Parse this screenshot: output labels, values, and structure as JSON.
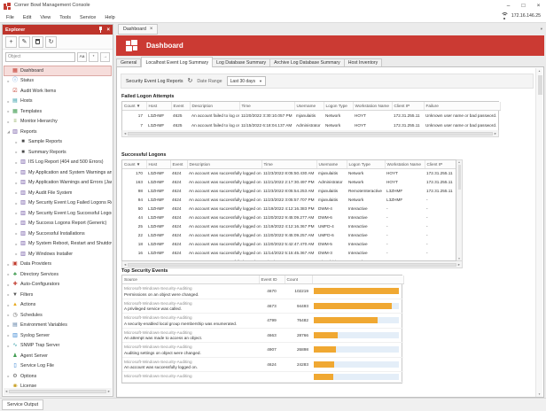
{
  "window": {
    "title": "Corner Bowl Management Console",
    "menus": [
      "File",
      "Edit",
      "View",
      "Tools",
      "Service",
      "Help"
    ],
    "network_ip": "172.16.146.25",
    "controls": {
      "minimize": "–",
      "maximize": "□",
      "close": "×"
    }
  },
  "explorer": {
    "title": "Explorer",
    "search_placeholder": "Object",
    "toolbar_icons": [
      {
        "name": "add-icon",
        "glyph": "+"
      },
      {
        "name": "edit-icon",
        "glyph": "✎"
      },
      {
        "name": "delete-icon",
        "glyph": ""
      },
      {
        "name": "refresh-icon",
        "glyph": "↻"
      }
    ],
    "search_buttons": [
      {
        "name": "match-case-button",
        "label": "Aa"
      },
      {
        "name": "wildcard-button",
        "label": "*"
      },
      {
        "name": "find-button",
        "label": "→"
      }
    ],
    "tree": [
      {
        "label": "Dashboard",
        "icon": "dashboard-icon",
        "glyph": "▦",
        "color": "#C43B30",
        "level": 0,
        "arrow": "",
        "selected": true
      },
      {
        "label": "Status",
        "icon": "status-icon",
        "glyph": "ⓘ",
        "color": "#2F7FD0",
        "level": 0,
        "arrow": "c"
      },
      {
        "label": "Audit Work Items",
        "icon": "audit-work-items-icon",
        "glyph": "☑",
        "color": "#C0392B",
        "level": 0,
        "arrow": ""
      },
      {
        "label": "Hosts",
        "icon": "hosts-icon",
        "glyph": "▤",
        "color": "#2E9BA6",
        "level": 0,
        "arrow": "c"
      },
      {
        "label": "Templates",
        "icon": "templates-icon",
        "glyph": "▦",
        "color": "#3E9B4F",
        "level": 0,
        "arrow": "c"
      },
      {
        "label": "Monitor Hierarchy",
        "icon": "monitor-hierarchy-icon",
        "glyph": "≡",
        "color": "#7FA24A",
        "level": 0,
        "arrow": "c"
      },
      {
        "label": "Reports",
        "icon": "reports-icon",
        "glyph": "▥",
        "color": "#6B4FA0",
        "level": 0,
        "arrow": "e"
      },
      {
        "label": "Sample Reports",
        "icon": "folder-icon",
        "glyph": "■",
        "color": "#4A4A4A",
        "level": 1,
        "arrow": "c"
      },
      {
        "label": "Summary Reports",
        "icon": "folder-icon",
        "glyph": "■",
        "color": "#4A4A4A",
        "level": 1,
        "arrow": "c"
      },
      {
        "label": "IIS Log Report (404 and 500 Errors)",
        "icon": "report-icon",
        "glyph": "▥",
        "color": "#6B4FA0",
        "level": 1,
        "arrow": "c"
      },
      {
        "label": "My Application and System Warnings and Errors",
        "icon": "report-icon",
        "glyph": "▥",
        "color": "#6B4FA0",
        "level": 1,
        "arrow": "c"
      },
      {
        "label": "My Application Warnings and Errors (Janco)",
        "icon": "report-icon",
        "glyph": "▥",
        "color": "#6B4FA0",
        "level": 1,
        "arrow": "c"
      },
      {
        "label": "My Audit File System",
        "icon": "report-icon",
        "glyph": "▥",
        "color": "#6B4FA0",
        "level": 1,
        "arrow": "c"
      },
      {
        "label": "My Security Event Log Failed Logons Report",
        "icon": "report-icon",
        "glyph": "▥",
        "color": "#6B4FA0",
        "level": 1,
        "arrow": "c"
      },
      {
        "label": "My Security Event Log Successful Logons Report",
        "icon": "report-icon",
        "glyph": "▥",
        "color": "#6B4FA0",
        "level": 1,
        "arrow": "c"
      },
      {
        "label": "My Success Logons Report (Generic)",
        "icon": "report-icon",
        "glyph": "▥",
        "color": "#6B4FA0",
        "level": 1,
        "arrow": "c"
      },
      {
        "label": "My Successful Installations",
        "icon": "report-icon",
        "glyph": "▥",
        "color": "#6B4FA0",
        "level": 1,
        "arrow": "c"
      },
      {
        "label": "My System Reboot, Restart and Shutdown",
        "icon": "report-icon",
        "glyph": "▥",
        "color": "#6B4FA0",
        "level": 1,
        "arrow": "c"
      },
      {
        "label": "My Windows Installer",
        "icon": "report-icon",
        "glyph": "▥",
        "color": "#6B4FA0",
        "level": 1,
        "arrow": "c"
      },
      {
        "label": "Data Providers",
        "icon": "data-providers-icon",
        "glyph": "▣",
        "color": "#C0392B",
        "level": 0,
        "arrow": "c"
      },
      {
        "label": "Directory Services",
        "icon": "directory-services-icon",
        "glyph": "♣",
        "color": "#3E9B4F",
        "level": 0,
        "arrow": "c"
      },
      {
        "label": "Auto-Configurators",
        "icon": "auto-configurators-icon",
        "glyph": "✚",
        "color": "#C0392B",
        "level": 0,
        "arrow": "c"
      },
      {
        "label": "Filters",
        "icon": "filters-icon",
        "glyph": "▼",
        "color": "#555555",
        "level": 0,
        "arrow": "c"
      },
      {
        "label": "Actions",
        "icon": "actions-icon",
        "glyph": "▲",
        "color": "#E8A91C",
        "level": 0,
        "arrow": "c"
      },
      {
        "label": "Schedules",
        "icon": "schedules-icon",
        "glyph": "◷",
        "color": "#555555",
        "level": 0,
        "arrow": "c"
      },
      {
        "label": "Environment Variables",
        "icon": "environment-variables-icon",
        "glyph": "▤",
        "color": "#5B7FA6",
        "level": 0,
        "arrow": "c"
      },
      {
        "label": "Syslog Server",
        "icon": "syslog-server-icon",
        "glyph": "▥",
        "color": "#2F7FD0",
        "level": 0,
        "arrow": "c"
      },
      {
        "label": "SNMP Trap Server",
        "icon": "snmp-trap-server-icon",
        "glyph": "∿",
        "color": "#2E9BA6",
        "level": 0,
        "arrow": "c"
      },
      {
        "label": "Agent Server",
        "icon": "agent-server-icon",
        "glyph": "♟",
        "color": "#3E9B4F",
        "level": 0,
        "arrow": ""
      },
      {
        "label": "Service Log File",
        "icon": "service-log-file-icon",
        "glyph": "▯",
        "color": "#2F7FD0",
        "level": 0,
        "arrow": ""
      },
      {
        "label": "Options",
        "icon": "options-icon",
        "glyph": "⚙",
        "color": "#666666",
        "level": 0,
        "arrow": "c"
      },
      {
        "label": "License",
        "icon": "license-icon",
        "glyph": "◉",
        "color": "#C9A227",
        "level": 0,
        "arrow": ""
      }
    ]
  },
  "status_bar": {
    "tab": "Service Output"
  },
  "document_tab": {
    "label": "Dashboard",
    "close": "×"
  },
  "banner": {
    "title": "Dashboard"
  },
  "tabs": {
    "items": [
      "General",
      "Localhost Event Log Summary",
      "Log Database Summary",
      "Archive Log Database Summary",
      "Host Inventory"
    ],
    "active_index": 1
  },
  "report_toolbar": {
    "title": "Security Event Log Reports",
    "refresh_icon": "↻",
    "date_range_label": "Date Range",
    "date_range_value": "Last 30 days"
  },
  "failed_logons": {
    "heading": "Failed Logon Attempts",
    "columns": [
      "Count ▼",
      "Host",
      "Event",
      "Description",
      "Time",
      "Username",
      "Logon Type",
      "Workstation Name",
      "Client IP",
      "Failure"
    ],
    "rows": [
      [
        "17",
        "L3ZHMF",
        "4625",
        "An account failed to log on",
        "11/20/2022 3:30:10.057 PM",
        "mjanulaitis",
        "Network",
        "HOYT",
        "172.31.255.11",
        "Unknown user name or bad password."
      ],
      [
        "7",
        "L3ZHMF",
        "4625",
        "An account failed to log on",
        "11/15/2022 6:18:04.137 AM",
        "Administrator",
        "Network",
        "HOYT",
        "172.31.255.11",
        "Unknown user name or bad password."
      ]
    ]
  },
  "successful_logons": {
    "heading": "Successful Logons",
    "columns": [
      "Count ▼",
      "Host",
      "Event",
      "Description",
      "Time",
      "Username",
      "Logon Type",
      "Workstation Name",
      "Client IP"
    ],
    "rows": [
      [
        "170",
        "L3ZHMF",
        "4624",
        "An account was successfully logged on.",
        "11/23/2022 8:05:50.430 AM",
        "mjanulaitis",
        "Network",
        "HOYT",
        "172.31.255.11"
      ],
      [
        "163",
        "L3ZHMF",
        "4624",
        "An account was successfully logged on.",
        "11/21/2022 2:17:30.497 PM",
        "Administrator",
        "Network",
        "HOYT",
        "172.31.255.11"
      ],
      [
        "98",
        "L3ZHMF",
        "4624",
        "An account was successfully logged on.",
        "11/23/2022 8:05:54.253 AM",
        "mjanulaitis",
        "RemoteInteractive",
        "L3ZHMF",
        "172.31.255.11"
      ],
      [
        "94",
        "L3ZHMF",
        "4624",
        "An account was successfully logged on.",
        "11/23/2022 3:05:57.707 PM",
        "mjanulaitis",
        "Network",
        "L3ZHMF",
        "-"
      ],
      [
        "50",
        "L3ZHMF",
        "4624",
        "An account was successfully logged on.",
        "11/19/2022 4:12:16.383 PM",
        "DWM-4",
        "Interactive",
        "-",
        "-"
      ],
      [
        "44",
        "L3ZHMF",
        "4624",
        "An account was successfully logged on.",
        "11/20/2022 9:45:09.277 AM",
        "DWM-6",
        "Interactive",
        "-",
        "-"
      ],
      [
        "25",
        "L3ZHMF",
        "4624",
        "An account was successfully logged on.",
        "11/19/2022 4:12:16.367 PM",
        "UMFD-4",
        "Interactive",
        "-",
        "-"
      ],
      [
        "22",
        "L3ZHMF",
        "4624",
        "An account was successfully logged on.",
        "11/20/2022 9:45:09.257 AM",
        "UMFD-6",
        "Interactive",
        "-",
        "-"
      ],
      [
        "18",
        "L3ZHMF",
        "4624",
        "An account was successfully logged on.",
        "11/20/2022 5:42:47.470 AM",
        "DWM-5",
        "Interactive",
        "-",
        "-"
      ],
      [
        "16",
        "L3ZHMF",
        "4624",
        "An account was successfully logged on.",
        "11/14/2022 5:15:45.367 AM",
        "DWM-3",
        "Interactive",
        "-",
        "-"
      ],
      [
        "11",
        "L3ZHMF",
        "4624",
        "An account was successfully logged on.",
        "11/20/2022 1:45:07.250 PM",
        "mjanulaitis",
        "Network",
        "HOYT",
        "172.31.255.11"
      ]
    ]
  },
  "top_security_events": {
    "heading": "Top Security Events",
    "columns": [
      "Source",
      "Event ID",
      "Count",
      ""
    ],
    "rows": [
      {
        "source": "Microsoft-Windows-Security-Auditing",
        "description": "Permissions on an object were changed.",
        "event_id": "4670",
        "count": "102219",
        "bar_pct": 100
      },
      {
        "source": "Microsoft-Windows-Security-Auditing",
        "description": "A privileged service was called.",
        "event_id": "4673",
        "count": "94493",
        "bar_pct": 92
      },
      {
        "source": "Microsoft-Windows-Security-Auditing",
        "description": "A security-enabled local group membership was enumerated.",
        "event_id": "4799",
        "count": "76482",
        "bar_pct": 75
      },
      {
        "source": "Microsoft-Windows-Security-Auditing",
        "description": "An attempt was made to access an object.",
        "event_id": "4663",
        "count": "28766",
        "bar_pct": 28
      },
      {
        "source": "Microsoft-Windows-Security-Auditing",
        "description": "Auditing settings on object were changed.",
        "event_id": "4907",
        "count": "26898",
        "bar_pct": 26
      },
      {
        "source": "Microsoft-Windows-Security-Auditing",
        "description": "An account was successfully logged on.",
        "event_id": "4624",
        "count": "24283",
        "bar_pct": 24
      },
      {
        "source": "Microsoft-Windows-Security-Auditing",
        "description": "",
        "event_id": "",
        "count": "",
        "bar_pct": 23
      }
    ]
  },
  "colors": {
    "accent_red": "#C43B30",
    "banner_red": "#CB3A33",
    "bar_orange": "#F0A832",
    "bar_track": "#E4EEF8",
    "selected_pink": "#F6DDDB"
  }
}
